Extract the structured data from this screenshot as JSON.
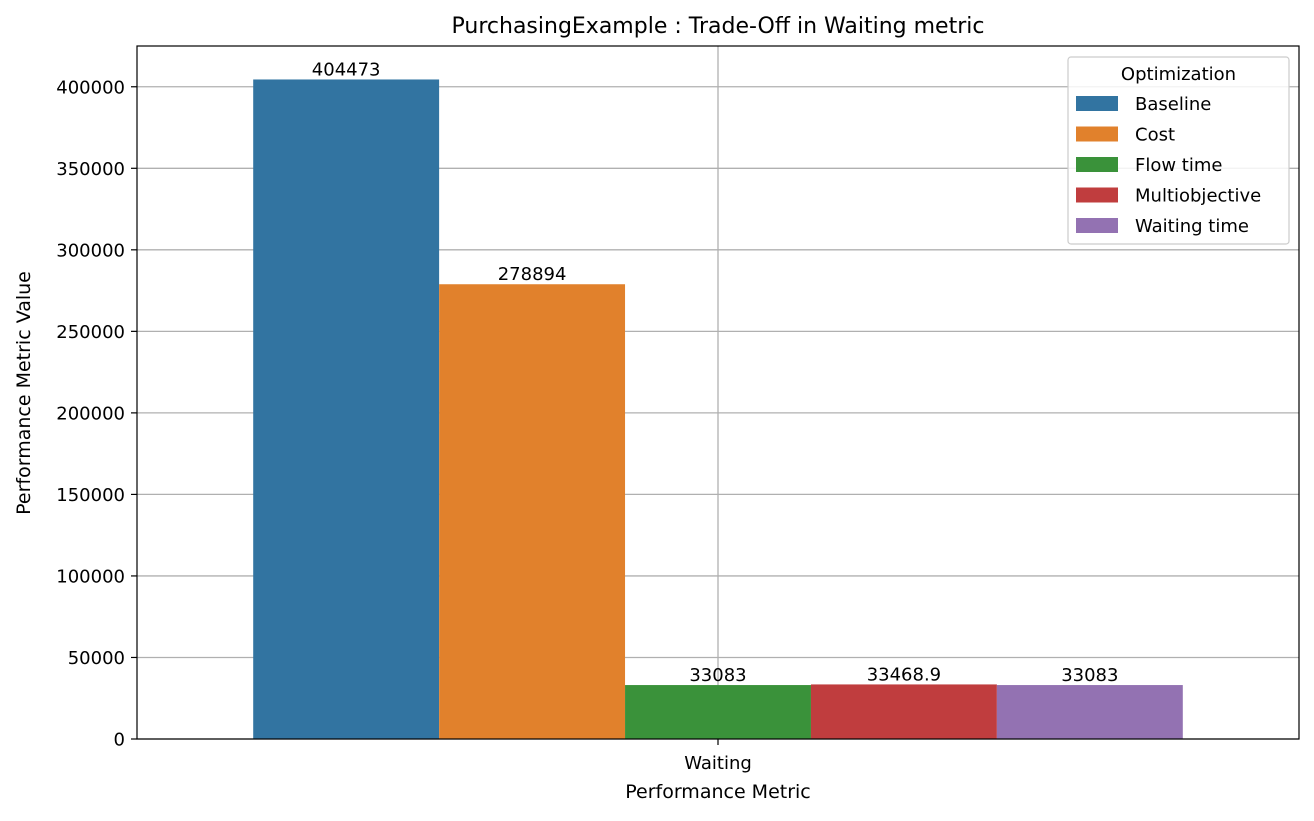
{
  "chart_data": {
    "type": "bar",
    "title": "PurchasingExample : Trade-Off in Waiting metric",
    "xlabel": "Performance Metric",
    "ylabel": "Performance Metric Value",
    "categories": [
      "Waiting"
    ],
    "ylim": [
      0,
      425000
    ],
    "yticks": [
      0,
      50000,
      100000,
      150000,
      200000,
      250000,
      300000,
      350000,
      400000
    ],
    "ytick_labels": [
      "0",
      "50000",
      "100000",
      "150000",
      "200000",
      "250000",
      "300000",
      "350000",
      "400000"
    ],
    "grid": true,
    "legend_title": "Optimization",
    "legend_position": "top-right",
    "series": [
      {
        "name": "Baseline",
        "values": [
          404473
        ],
        "label": "404473",
        "color": "#3274a1"
      },
      {
        "name": "Cost",
        "values": [
          278894
        ],
        "label": "278894",
        "color": "#e1812c"
      },
      {
        "name": "Flow time",
        "values": [
          33083
        ],
        "label": "33083",
        "color": "#3a923a"
      },
      {
        "name": "Multiobjective",
        "values": [
          33468.9
        ],
        "label": "33468.9",
        "color": "#c03d3e"
      },
      {
        "name": "Waiting time",
        "values": [
          33083
        ],
        "label": "33083",
        "color": "#9372b2"
      }
    ]
  }
}
